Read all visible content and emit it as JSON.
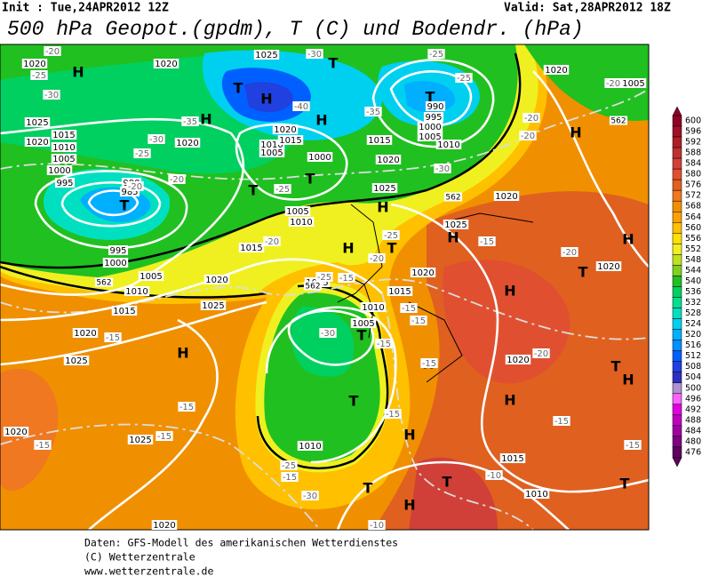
{
  "header": {
    "init": "Init : Tue,24APR2012 12Z",
    "valid": "Valid: Sat,28APR2012 18Z",
    "title": "500 hPa Geopot.(gpdm), T (C) und Bodendr. (hPa)"
  },
  "map": {
    "pressure_centers": [
      "H",
      "T",
      "H",
      "T",
      "T",
      "H",
      "H",
      "T",
      "T",
      "T",
      "H",
      "H",
      "T",
      "H",
      "H",
      "T",
      "H",
      "H",
      "H",
      "T",
      "H",
      "T",
      "H",
      "T",
      "H",
      "H",
      "T",
      "T",
      "H",
      "T"
    ],
    "isobar_labels": [
      "1020",
      "1020",
      "1025",
      "1020",
      "1005",
      "1025",
      "1015",
      "1010",
      "1005",
      "1000",
      "995",
      "990",
      "985",
      "1020",
      "1020",
      "1010",
      "1015",
      "1005",
      "1000",
      "1020",
      "1015",
      "1010",
      "1020",
      "990",
      "995",
      "1000",
      "1005",
      "1025",
      "1005",
      "1010",
      "1015",
      "995",
      "1000",
      "1005",
      "1010",
      "1015",
      "1020",
      "1025",
      "1020",
      "1025",
      "1020",
      "1025",
      "1020",
      "1025",
      "1020",
      "1015",
      "1010",
      "1005",
      "1010",
      "1025",
      "1020",
      "1015",
      "1010",
      "1020",
      "1020"
    ],
    "temperature_labels": [
      "-20",
      "-25",
      "-30",
      "-30",
      "-25",
      "-20",
      "-20",
      "-25",
      "-20",
      "-35",
      "-40",
      "-35",
      "-30",
      "-25",
      "-25",
      "-20",
      "-20",
      "-30",
      "-25",
      "-20",
      "-15",
      "-20",
      "-15",
      "-15",
      "-15",
      "-15",
      "-30",
      "-25",
      "-15",
      "-15",
      "-15",
      "-15",
      "-15",
      "-20",
      "-15",
      "-15",
      "-10",
      "-10",
      "-25",
      "-30",
      "-15",
      "-20",
      "-15"
    ],
    "height_labels": [
      "562",
      "562",
      "562",
      "562"
    ]
  },
  "colorbar": {
    "labels": [
      600,
      596,
      592,
      588,
      584,
      580,
      576,
      572,
      568,
      564,
      560,
      556,
      552,
      548,
      544,
      540,
      536,
      532,
      528,
      524,
      520,
      516,
      512,
      508,
      504,
      500,
      496,
      492,
      488,
      484,
      480,
      476
    ],
    "colors": [
      "#900028",
      "#a01028",
      "#b01e28",
      "#c03030",
      "#d04038",
      "#e05030",
      "#e06020",
      "#f07820",
      "#f09000",
      "#ffa000",
      "#ffc000",
      "#ffe000",
      "#f0f020",
      "#c0e020",
      "#80d020",
      "#20c020",
      "#00d060",
      "#00e090",
      "#00e0c0",
      "#00d0f0",
      "#00b0ff",
      "#0090ff",
      "#0060ff",
      "#2040e0",
      "#3030c0",
      "#b090d0",
      "#ff60ff",
      "#e000e0",
      "#c000c0",
      "#a000a0",
      "#800080",
      "#600060"
    ]
  },
  "footer": [
    "Daten: GFS-Modell des amerikanischen Wetterdienstes",
    "(C) Wetterzentrale",
    "www.wetterzentrale.de"
  ]
}
